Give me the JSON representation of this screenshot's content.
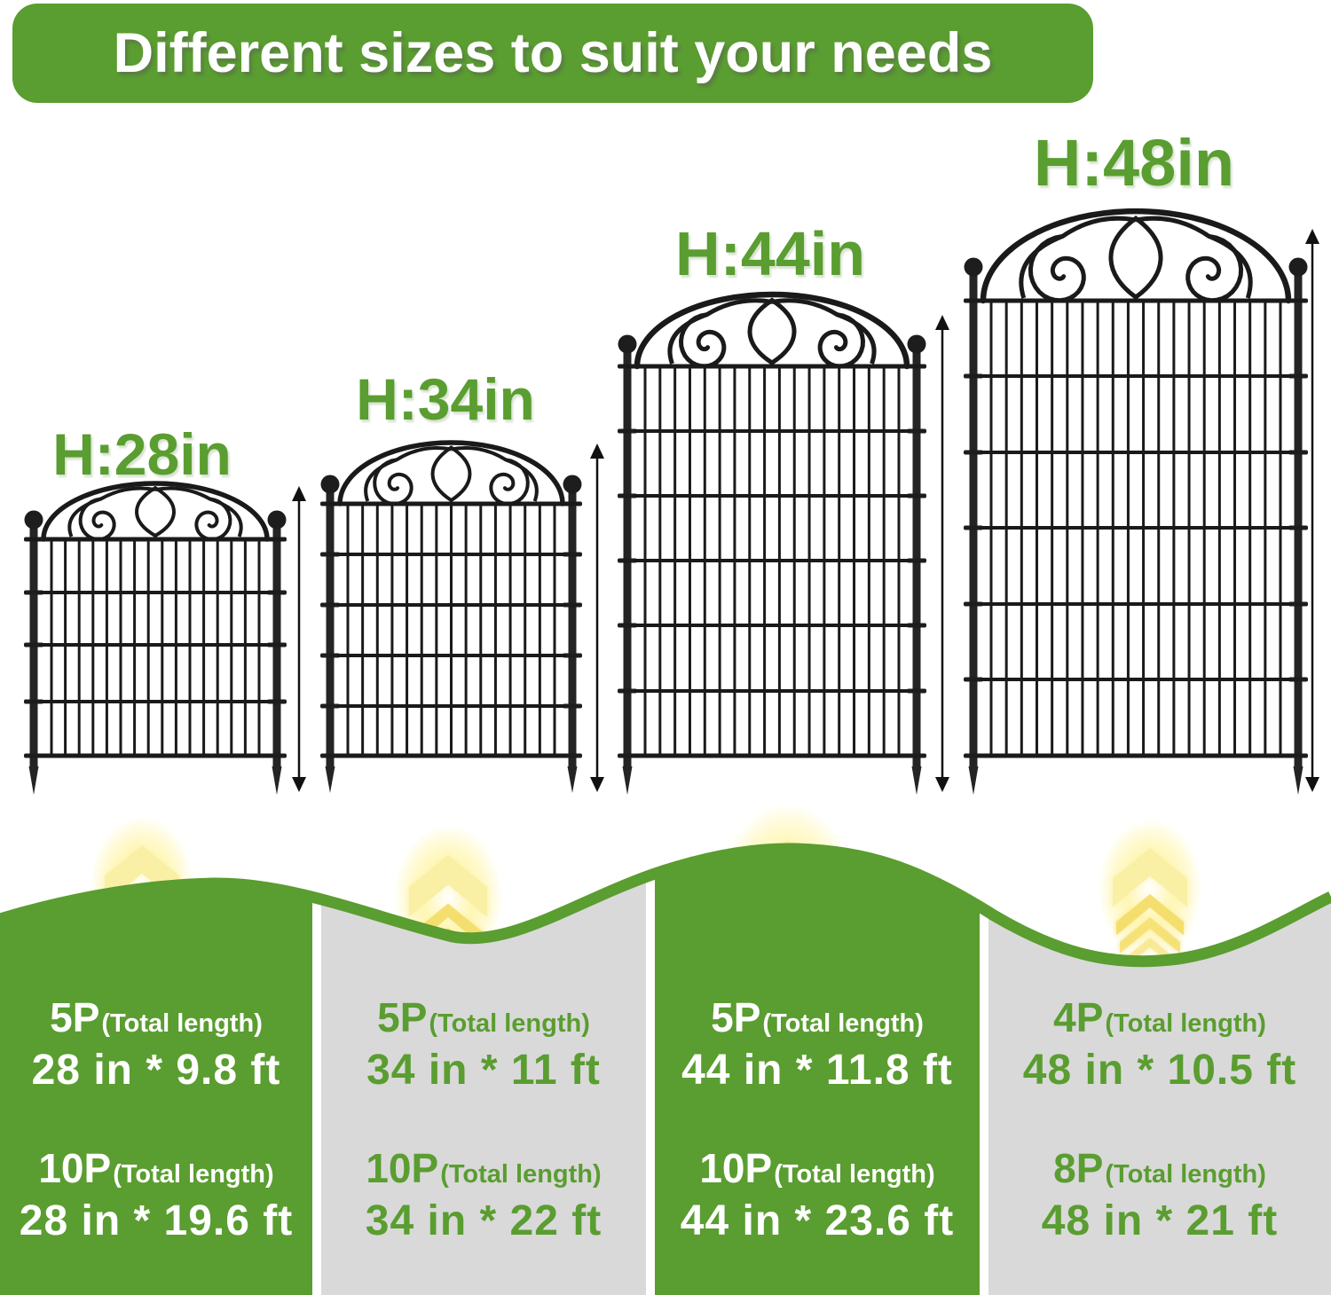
{
  "banner": {
    "title": "Different sizes to suit your needs"
  },
  "colors": {
    "green": "#5a9d30",
    "gray": "#d9d9d9",
    "fence_black": "#1a1a1a",
    "chevron_yellow": "#f3dd6a",
    "chevron_pale": "#f9f0a6",
    "white": "#ffffff"
  },
  "fences": [
    {
      "height_label": "H:28in"
    },
    {
      "height_label": "H:34in"
    },
    {
      "height_label": "H:44in"
    },
    {
      "height_label": "H:48in"
    }
  ],
  "size_table": {
    "columns": [
      {
        "style": "green",
        "rows": [
          {
            "pack": "5P",
            "note": "(Total length)",
            "dims": "28 in * 9.8 ft"
          },
          {
            "pack": "10P",
            "note": "(Total length)",
            "dims": "28 in * 19.6 ft"
          }
        ]
      },
      {
        "style": "gray",
        "rows": [
          {
            "pack": "5P",
            "note": "(Total length)",
            "dims": "34 in * 11 ft"
          },
          {
            "pack": "10P",
            "note": "(Total length)",
            "dims": "34 in * 22 ft"
          }
        ]
      },
      {
        "style": "green",
        "rows": [
          {
            "pack": "5P",
            "note": "(Total length)",
            "dims": "44 in * 11.8 ft"
          },
          {
            "pack": "10P",
            "note": "(Total length)",
            "dims": "44 in * 23.6 ft"
          }
        ]
      },
      {
        "style": "gray",
        "rows": [
          {
            "pack": "4P",
            "note": "(Total length)",
            "dims": "48 in * 10.5 ft"
          },
          {
            "pack": "8P",
            "note": "(Total length)",
            "dims": "48 in * 21 ft"
          }
        ]
      }
    ]
  }
}
